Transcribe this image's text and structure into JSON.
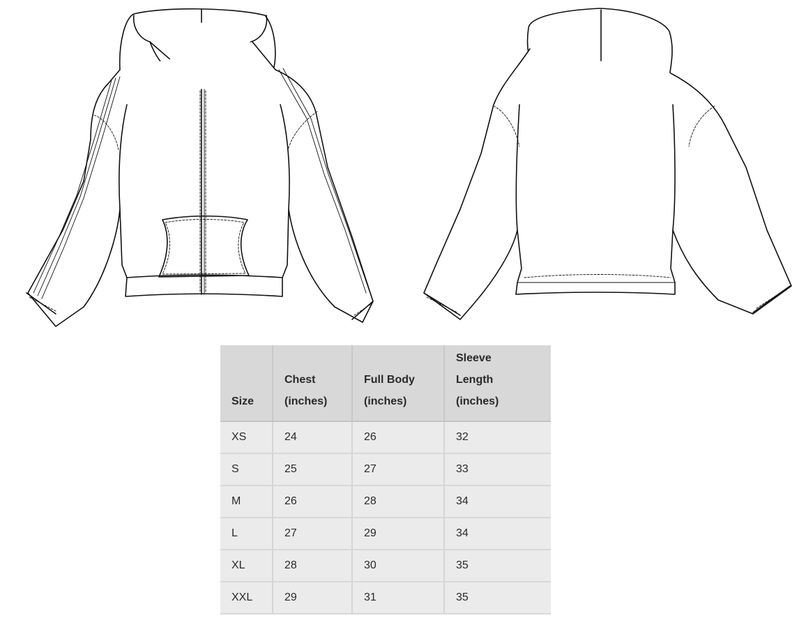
{
  "size_chart": {
    "headers": [
      [
        "Size"
      ],
      [
        "Chest",
        "(inches)"
      ],
      [
        "Full Body",
        "(inches)"
      ],
      [
        "Sleeve",
        "Length",
        "(inches)"
      ]
    ],
    "rows": [
      [
        "XS",
        "24",
        "26",
        "32"
      ],
      [
        "S",
        "25",
        "27",
        "33"
      ],
      [
        "M",
        "26",
        "28",
        "34"
      ],
      [
        "L",
        "27",
        "29",
        "34"
      ],
      [
        "XL",
        "28",
        "30",
        "35"
      ],
      [
        "XXL",
        "29",
        "31",
        "35"
      ]
    ]
  },
  "drawings": {
    "front": "zip-hoodie-front-flat-sketch",
    "back": "hoodie-back-flat-sketch"
  }
}
